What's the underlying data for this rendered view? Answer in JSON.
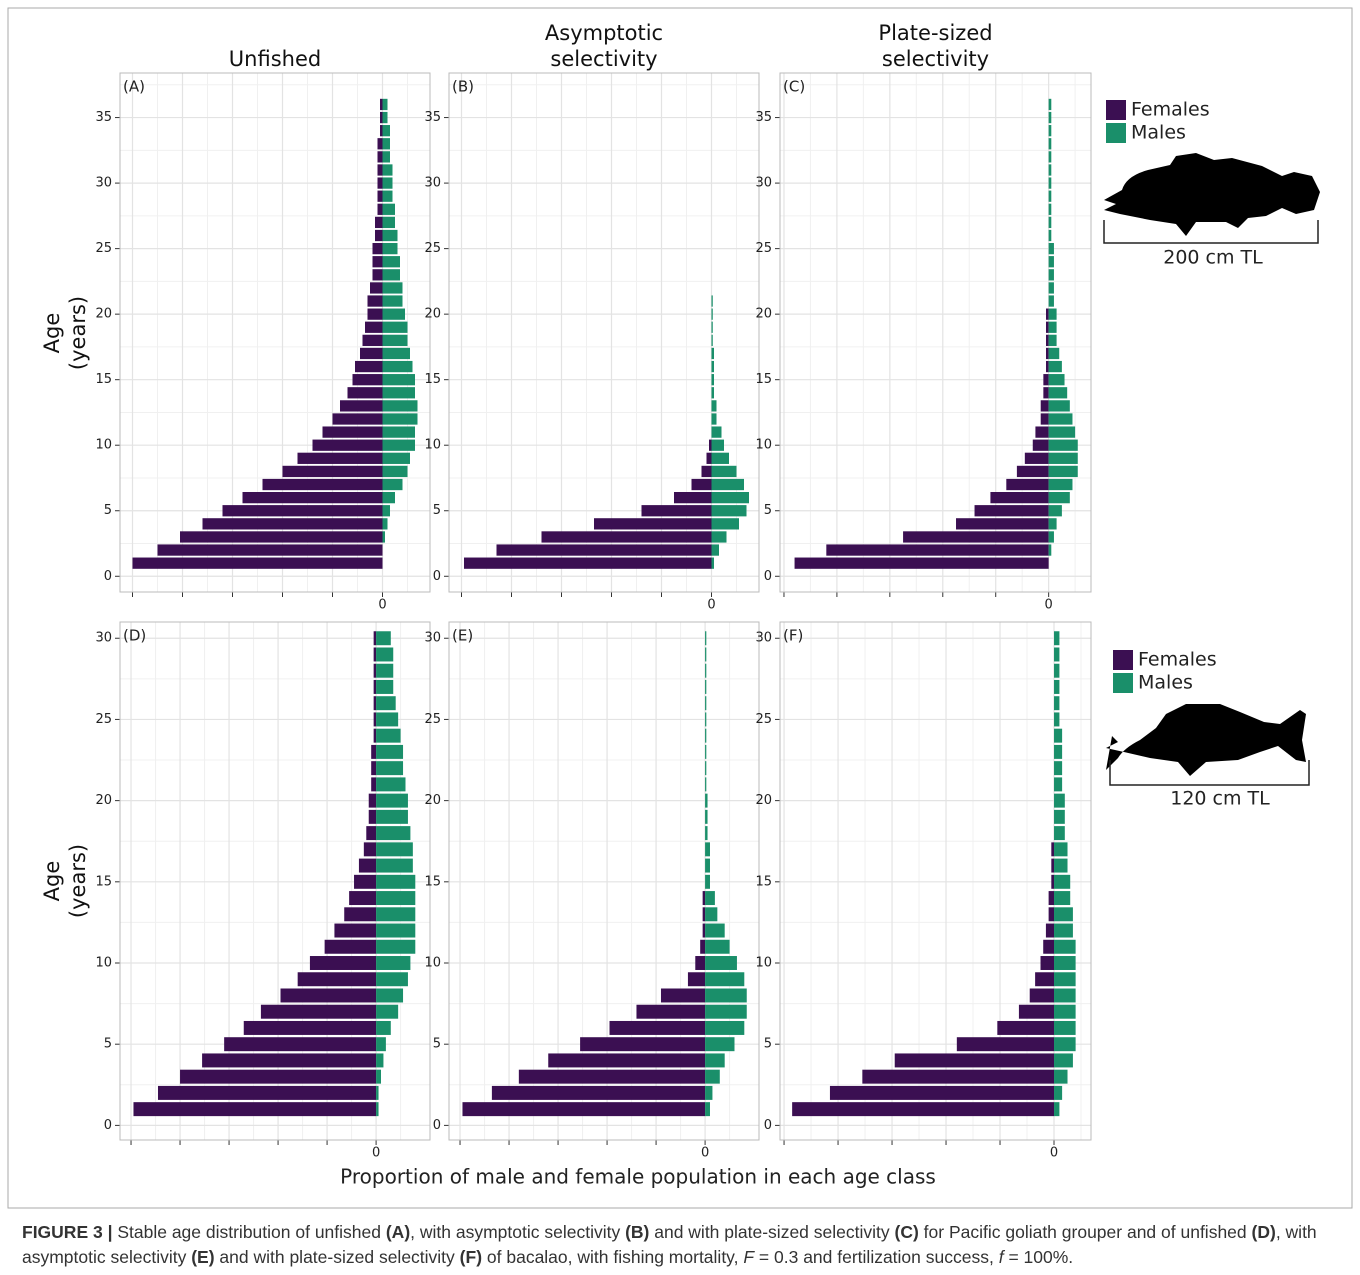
{
  "figure": {
    "xlabel": "Proportion of male and female population in each age class",
    "caption": [
      {
        "text": "FIGURE 3 |",
        "style": "bold"
      },
      {
        "text": " Stable age distribution of unfished ",
        "style": "normal"
      },
      {
        "text": "(A)",
        "style": "bold"
      },
      {
        "text": ", with asymptotic selectivity ",
        "style": "normal"
      },
      {
        "text": "(B)",
        "style": "bold"
      },
      {
        "text": " and with plate-sized selectivity ",
        "style": "normal"
      },
      {
        "text": "(C)",
        "style": "bold"
      },
      {
        "text": " for Pacific goliath grouper and of unfished ",
        "style": "normal"
      },
      {
        "text": "(D)",
        "style": "bold"
      },
      {
        "text": ", with asymptotic selectivity ",
        "style": "normal"
      },
      {
        "text": "(E)",
        "style": "bold"
      },
      {
        "text": " and with plate-sized selectivity ",
        "style": "normal"
      },
      {
        "text": "(F)",
        "style": "bold"
      },
      {
        "text": " of bacalao, with fishing mortality, ",
        "style": "normal"
      },
      {
        "text": "F",
        "style": "italic"
      },
      {
        "text": " = 0.3 and fertilization success, ",
        "style": "normal"
      },
      {
        "text": "f",
        "style": "italic"
      },
      {
        "text": " = 100%.",
        "style": "normal"
      }
    ]
  },
  "chart_data": [
    {
      "type": "bar",
      "orientation": "horizontal",
      "panel_label": "(A)",
      "title": "Unfished",
      "ylabel": "Age (years)",
      "y": [
        1,
        2,
        3,
        4,
        5,
        6,
        7,
        8,
        9,
        10,
        11,
        12,
        13,
        14,
        15,
        16,
        17,
        18,
        19,
        20,
        21,
        22,
        23,
        24,
        25,
        26,
        27,
        28,
        29,
        30,
        31,
        32,
        33,
        34,
        35,
        36
      ],
      "series": [
        {
          "name": "Females",
          "color": "#3b0f52",
          "values": [
            -10,
            -9,
            -8.1,
            -7.2,
            -6.4,
            -5.6,
            -4.8,
            -4,
            -3.4,
            -2.8,
            -2.4,
            -2,
            -1.7,
            -1.4,
            -1.2,
            -1.1,
            -0.9,
            -0.8,
            -0.7,
            -0.6,
            -0.6,
            -0.5,
            -0.4,
            -0.4,
            -0.4,
            -0.3,
            -0.3,
            -0.2,
            -0.2,
            -0.2,
            -0.2,
            -0.2,
            -0.2,
            -0.1,
            -0.1,
            -0.1
          ]
        },
        {
          "name": "Males",
          "color": "#1a8f6a",
          "values": [
            0,
            0,
            0.1,
            0.2,
            0.3,
            0.5,
            0.8,
            1,
            1.1,
            1.3,
            1.3,
            1.4,
            1.4,
            1.3,
            1.3,
            1.2,
            1.1,
            1,
            1,
            0.9,
            0.8,
            0.8,
            0.7,
            0.7,
            0.6,
            0.6,
            0.5,
            0.5,
            0.4,
            0.4,
            0.4,
            0.3,
            0.3,
            0.3,
            0.2,
            0.2
          ]
        }
      ],
      "xlim": [
        -10.5,
        1.9
      ],
      "xticks": [
        {
          "value": -10,
          "label": null
        },
        {
          "value": -8,
          "label": null
        },
        {
          "value": -6,
          "label": null
        },
        {
          "value": -4,
          "label": null
        },
        {
          "value": -2,
          "label": null
        },
        0
      ],
      "ylim": [
        -1.2,
        38.4
      ],
      "yticks": [
        0,
        5,
        10,
        15,
        20,
        25,
        30,
        35
      ],
      "grid": true
    },
    {
      "type": "bar",
      "orientation": "horizontal",
      "panel_label": "(B)",
      "title": "Asymptotic selectivity",
      "y": [
        1,
        2,
        3,
        4,
        5,
        6,
        7,
        8,
        9,
        10,
        11,
        12,
        13,
        14,
        15,
        16,
        17,
        18,
        19,
        20,
        21
      ],
      "series": [
        {
          "name": "Females",
          "color": "#3b0f52",
          "values": [
            -9.9,
            -8.6,
            -6.8,
            -4.7,
            -2.8,
            -1.5,
            -0.8,
            -0.4,
            -0.2,
            -0.1,
            0,
            0,
            0,
            0,
            0,
            0,
            0,
            0,
            0,
            0,
            0
          ]
        },
        {
          "name": "Males",
          "color": "#1a8f6a",
          "values": [
            0.1,
            0.3,
            0.6,
            1.1,
            1.4,
            1.5,
            1.3,
            1,
            0.7,
            0.5,
            0.4,
            0.2,
            0.2,
            0.1,
            0.1,
            0.1,
            0.1,
            0.05,
            0.05,
            0.05,
            0.05
          ]
        }
      ],
      "xlim": [
        -10.5,
        1.9
      ],
      "xticks": [
        {
          "value": -10,
          "label": null
        },
        {
          "value": -8,
          "label": null
        },
        {
          "value": -6,
          "label": null
        },
        {
          "value": -4,
          "label": null
        },
        {
          "value": -2,
          "label": null
        },
        0
      ],
      "ylim": [
        -1.2,
        38.4
      ],
      "yticks": [
        0,
        5,
        10,
        15,
        20,
        25,
        30,
        35
      ],
      "grid": true
    },
    {
      "type": "bar",
      "orientation": "horizontal",
      "panel_label": "(C)",
      "title": "Plate-sized selectivity",
      "y": [
        1,
        2,
        3,
        4,
        5,
        6,
        7,
        8,
        9,
        10,
        11,
        12,
        13,
        14,
        15,
        16,
        17,
        18,
        19,
        20,
        21,
        22,
        23,
        24,
        25,
        26,
        27,
        28,
        29,
        30,
        31,
        32,
        33,
        34,
        35,
        36
      ],
      "series": [
        {
          "name": "Females",
          "color": "#3b0f52",
          "values": [
            -9.6,
            -8.4,
            -5.5,
            -3.5,
            -2.8,
            -2.2,
            -1.6,
            -1.2,
            -0.9,
            -0.6,
            -0.5,
            -0.3,
            -0.3,
            -0.2,
            -0.2,
            -0.1,
            -0.1,
            -0.1,
            -0.1,
            -0.1,
            0,
            0,
            0,
            0,
            0,
            0,
            0,
            0,
            0,
            0,
            0,
            0,
            0,
            0,
            0,
            0
          ]
        },
        {
          "name": "Males",
          "color": "#1a8f6a",
          "values": [
            0,
            0.1,
            0.2,
            0.3,
            0.5,
            0.8,
            0.9,
            1.1,
            1.1,
            1.1,
            1,
            0.9,
            0.8,
            0.7,
            0.6,
            0.5,
            0.4,
            0.3,
            0.3,
            0.3,
            0.2,
            0.2,
            0.2,
            0.2,
            0.2,
            0.1,
            0.1,
            0.1,
            0.1,
            0.1,
            0.1,
            0.1,
            0.1,
            0.1,
            0.1,
            0.1
          ]
        }
      ],
      "xlim": [
        -10.15,
        1.6
      ],
      "xticks": [
        {
          "value": -10,
          "label": null
        },
        {
          "value": -8,
          "label": null
        },
        {
          "value": -6,
          "label": null
        },
        {
          "value": -4,
          "label": null
        },
        {
          "value": -2,
          "label": null
        },
        0
      ],
      "ylim": [
        -1.2,
        38.4
      ],
      "yticks": [
        0,
        5,
        10,
        15,
        20,
        25,
        30,
        35
      ],
      "grid": true,
      "legend": true,
      "legend_annotation": "200 cm TL"
    },
    {
      "type": "bar",
      "orientation": "horizontal",
      "panel_label": "(D)",
      "ylabel": "Age (years)",
      "y": [
        1,
        2,
        3,
        4,
        5,
        6,
        7,
        8,
        9,
        10,
        11,
        12,
        13,
        14,
        15,
        16,
        17,
        18,
        19,
        20,
        21,
        22,
        23,
        24,
        25,
        26,
        27,
        28,
        29,
        30
      ],
      "series": [
        {
          "name": "Females",
          "color": "#3b0f52",
          "values": [
            -9.9,
            -8.9,
            -8,
            -7.1,
            -6.2,
            -5.4,
            -4.7,
            -3.9,
            -3.2,
            -2.7,
            -2.1,
            -1.7,
            -1.3,
            -1.1,
            -0.9,
            -0.7,
            -0.5,
            -0.4,
            -0.3,
            -0.3,
            -0.2,
            -0.2,
            -0.2,
            -0.1,
            -0.1,
            -0.1,
            -0.1,
            -0.1,
            -0.1,
            -0.1
          ]
        },
        {
          "name": "Males",
          "color": "#1a8f6a",
          "values": [
            0.1,
            0.1,
            0.2,
            0.3,
            0.4,
            0.6,
            0.9,
            1.1,
            1.3,
            1.4,
            1.6,
            1.6,
            1.6,
            1.6,
            1.6,
            1.5,
            1.5,
            1.4,
            1.3,
            1.3,
            1.2,
            1.1,
            1.1,
            1,
            0.9,
            0.8,
            0.7,
            0.7,
            0.7,
            0.6
          ]
        }
      ],
      "xlim": [
        -10.45,
        2.2
      ],
      "xticks": [
        {
          "value": -10,
          "label": null
        },
        {
          "value": -8,
          "label": null
        },
        {
          "value": -6,
          "label": null
        },
        {
          "value": -4,
          "label": null
        },
        {
          "value": -2,
          "label": null
        },
        0
      ],
      "ylim": [
        -0.9,
        31
      ],
      "yticks": [
        0,
        5,
        10,
        15,
        20,
        25,
        30
      ],
      "grid": true
    },
    {
      "type": "bar",
      "orientation": "horizontal",
      "panel_label": "(E)",
      "y": [
        1,
        2,
        3,
        4,
        5,
        6,
        7,
        8,
        9,
        10,
        11,
        12,
        13,
        14,
        15,
        16,
        17,
        18,
        19,
        20,
        21,
        22,
        23,
        24,
        25,
        26,
        27,
        28,
        29,
        30
      ],
      "series": [
        {
          "name": "Females",
          "color": "#3b0f52",
          "values": [
            -9.9,
            -8.7,
            -7.6,
            -6.4,
            -5.1,
            -3.9,
            -2.8,
            -1.8,
            -0.7,
            -0.4,
            -0.2,
            -0.1,
            -0.1,
            -0.1,
            0,
            0,
            0,
            0,
            0,
            0,
            0,
            0,
            0,
            0,
            0,
            0,
            0,
            0,
            0,
            0
          ]
        },
        {
          "name": "Males",
          "color": "#1a8f6a",
          "values": [
            0.2,
            0.3,
            0.6,
            0.8,
            1.2,
            1.6,
            1.7,
            1.7,
            1.6,
            1.3,
            1,
            0.8,
            0.5,
            0.4,
            0.2,
            0.2,
            0.2,
            0.1,
            0.1,
            0.1,
            0.05,
            0.05,
            0.05,
            0.05,
            0.05,
            0.05,
            0.05,
            0.05,
            0.05,
            0.05
          ]
        }
      ],
      "xlim": [
        -10.45,
        2.2
      ],
      "xticks": [
        {
          "value": -10,
          "label": null
        },
        {
          "value": -8,
          "label": null
        },
        {
          "value": -6,
          "label": null
        },
        {
          "value": -4,
          "label": null
        },
        {
          "value": -2,
          "label": null
        },
        0
      ],
      "ylim": [
        -0.9,
        31
      ],
      "yticks": [
        0,
        5,
        10,
        15,
        20,
        25,
        30
      ],
      "grid": true
    },
    {
      "type": "bar",
      "orientation": "horizontal",
      "panel_label": "(F)",
      "y": [
        1,
        2,
        3,
        4,
        5,
        6,
        7,
        8,
        9,
        10,
        11,
        12,
        13,
        14,
        15,
        16,
        17,
        18,
        19,
        20,
        21,
        22,
        23,
        24,
        25,
        26,
        27,
        28,
        29,
        30
      ],
      "series": [
        {
          "name": "Females",
          "color": "#3b0f52",
          "values": [
            -9.7,
            -8.3,
            -7.1,
            -5.9,
            -3.6,
            -2.1,
            -1.3,
            -0.9,
            -0.7,
            -0.5,
            -0.4,
            -0.3,
            -0.2,
            -0.2,
            -0.1,
            -0.1,
            -0.1,
            0,
            0,
            0,
            0,
            0,
            0,
            0,
            0,
            0,
            0,
            0,
            0,
            0
          ]
        },
        {
          "name": "Males",
          "color": "#1a8f6a",
          "values": [
            0.2,
            0.3,
            0.5,
            0.7,
            0.8,
            0.8,
            0.8,
            0.8,
            0.8,
            0.8,
            0.8,
            0.7,
            0.7,
            0.6,
            0.6,
            0.5,
            0.5,
            0.4,
            0.4,
            0.4,
            0.3,
            0.3,
            0.3,
            0.3,
            0.2,
            0.2,
            0.2,
            0.2,
            0.2,
            0.2
          ]
        }
      ],
      "xlim": [
        -10.15,
        1.37
      ],
      "xticks": [
        {
          "value": -10,
          "label": null
        },
        {
          "value": -8,
          "label": null
        },
        {
          "value": -6,
          "label": null
        },
        {
          "value": -4,
          "label": null
        },
        {
          "value": -2,
          "label": null
        },
        0
      ],
      "ylim": [
        -0.9,
        31
      ],
      "yticks": [
        0,
        5,
        10,
        15,
        20,
        25,
        30
      ],
      "grid": true,
      "legend": true,
      "legend_annotation": "120 cm TL"
    }
  ]
}
